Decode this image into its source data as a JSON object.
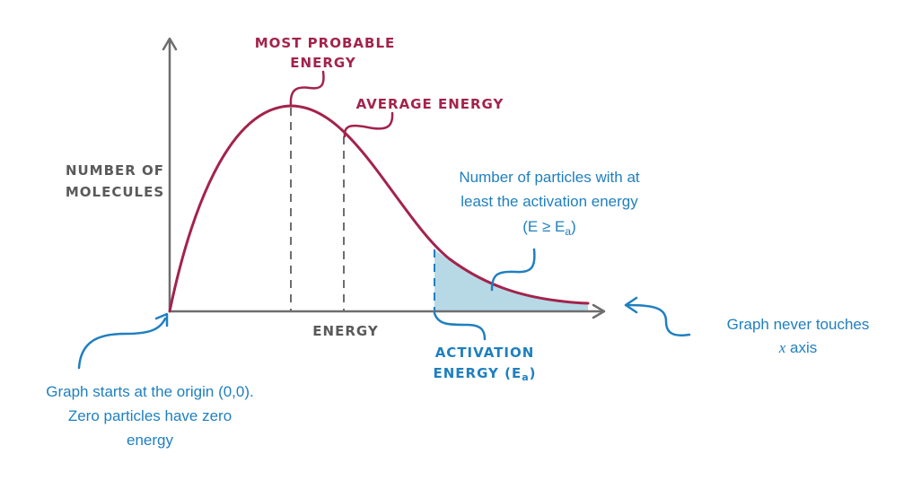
{
  "axes": {
    "y_label_line1": "NUMBER OF",
    "y_label_line2": "MOLECULES",
    "x_label": "ENERGY"
  },
  "labels": {
    "most_probable_line1": "MOST PROBABLE",
    "most_probable_line2": "ENERGY",
    "average_energy": "AVERAGE ENERGY",
    "activation_line1": "ACTIVATION",
    "activation_line2": "ENERGY (E",
    "activation_sub": "a",
    "activation_close": ")"
  },
  "annotations": {
    "particles_line1": "Number of particles with at",
    "particles_line2": "least the activation energy",
    "particles_line3_prefix": "(E ≥ E",
    "particles_line3_sub": "a",
    "particles_line3_suffix": ")",
    "never_touches_line1": "Graph never touches",
    "never_touches_line2_var": "x",
    "never_touches_line2_rest": " axis",
    "origin_line1": "Graph starts at the origin (0,0).",
    "origin_line2": "Zero particles have zero",
    "origin_line3": "energy"
  },
  "colors": {
    "curve": "#a3234b",
    "axis": "#6e6e6e",
    "annotation": "#1f7fbf",
    "shade": "#b7d9e6"
  }
}
